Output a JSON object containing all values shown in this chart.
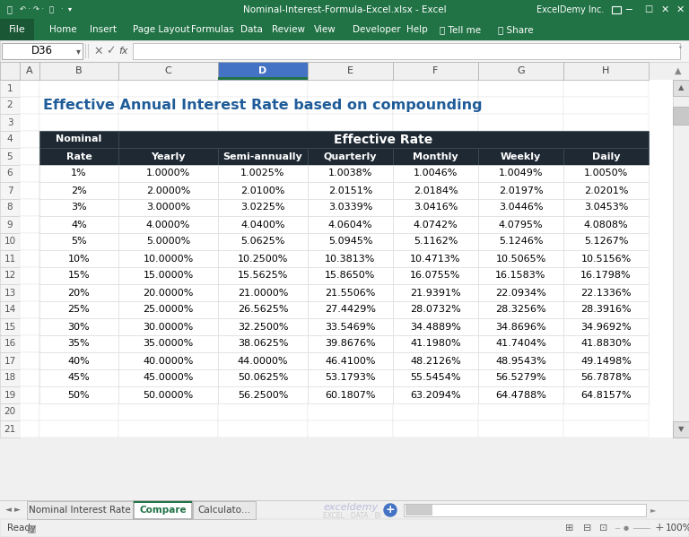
{
  "title": "Effective Annual Interest Rate based on compounding",
  "title_color": "#1F5C99",
  "rows": [
    [
      "1%",
      "1.0000%",
      "1.0025%",
      "1.0038%",
      "1.0046%",
      "1.0049%",
      "1.0050%"
    ],
    [
      "2%",
      "2.0000%",
      "2.0100%",
      "2.0151%",
      "2.0184%",
      "2.0197%",
      "2.0201%"
    ],
    [
      "3%",
      "3.0000%",
      "3.0225%",
      "3.0339%",
      "3.0416%",
      "3.0446%",
      "3.0453%"
    ],
    [
      "4%",
      "4.0000%",
      "4.0400%",
      "4.0604%",
      "4.0742%",
      "4.0795%",
      "4.0808%"
    ],
    [
      "5%",
      "5.0000%",
      "5.0625%",
      "5.0945%",
      "5.1162%",
      "5.1246%",
      "5.1267%"
    ],
    [
      "10%",
      "10.0000%",
      "10.2500%",
      "10.3813%",
      "10.4713%",
      "10.5065%",
      "10.5156%"
    ],
    [
      "15%",
      "15.0000%",
      "15.5625%",
      "15.8650%",
      "16.0755%",
      "16.1583%",
      "16.1798%"
    ],
    [
      "20%",
      "20.0000%",
      "21.0000%",
      "21.5506%",
      "21.9391%",
      "22.0934%",
      "22.1336%"
    ],
    [
      "25%",
      "25.0000%",
      "26.5625%",
      "27.4429%",
      "28.0732%",
      "28.3256%",
      "28.3916%"
    ],
    [
      "30%",
      "30.0000%",
      "32.2500%",
      "33.5469%",
      "34.4889%",
      "34.8696%",
      "34.9692%"
    ],
    [
      "35%",
      "35.0000%",
      "38.0625%",
      "39.8676%",
      "41.1980%",
      "41.7404%",
      "41.8830%"
    ],
    [
      "40%",
      "40.0000%",
      "44.0000%",
      "46.4100%",
      "48.2126%",
      "48.9543%",
      "49.1498%"
    ],
    [
      "45%",
      "45.0000%",
      "50.0625%",
      "53.1793%",
      "55.5454%",
      "56.5279%",
      "56.7878%"
    ],
    [
      "50%",
      "50.0000%",
      "56.2500%",
      "60.1807%",
      "63.2094%",
      "64.4788%",
      "64.8157%"
    ]
  ],
  "header_bg": "#1E2933",
  "header_text": "#FFFFFF",
  "excel_bg": "#F0F0F0",
  "ribbon_green": "#217346",
  "ribbon_green_dark": "#1A5C38",
  "cell_ref": "D36",
  "sheet_tabs": [
    "Nominal Interest Rate",
    "Compare",
    "Calculato..."
  ],
  "active_tab": "Compare",
  "titlebar_bg": "#217346",
  "col_header_blue": "#4472C4",
  "grid_line": "#D0D0D0",
  "row_num_bg": "#F5F5F5",
  "col_header_bg": "#F0F0F0",
  "formula_bar_bg": "#F5F5F5",
  "scrollbar_bg": "#F0F0F0",
  "scrollbar_thumb": "#C8C8C8",
  "status_bar_bg": "#F0F0F0",
  "tab_area_bg": "#F0F0F0",
  "active_tab_color": "#217346",
  "inactive_tab_text": "#444444",
  "watermark_color": "#AAAACC"
}
